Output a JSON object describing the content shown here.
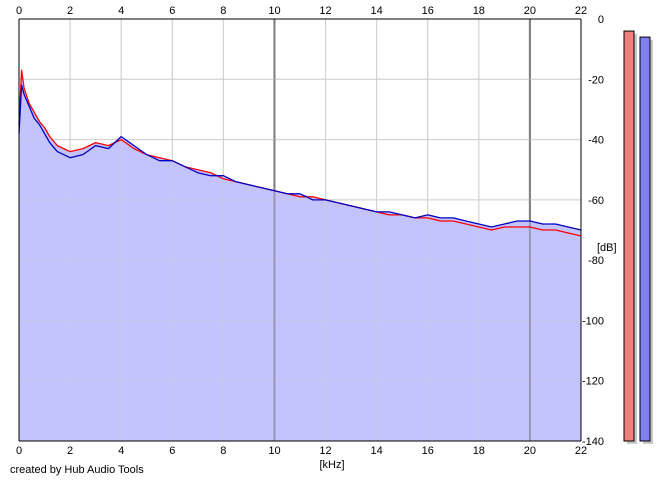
{
  "app": {
    "credit": "created by Hub Audio Tools"
  },
  "colors": {
    "background": "#ffffff",
    "area_fill": "#c0c0ff",
    "grid_minor": "#d0d0d0",
    "grid_major": "#7f7f7f",
    "series_left": "#ff0000",
    "series_right": "#0000c0",
    "meter_left": "#f08080",
    "meter_right": "#8080f0",
    "meter_shadow": "#c8c8c8"
  },
  "chart_data": {
    "type": "line",
    "title": "",
    "xlabel": "[kHz]",
    "ylabel": "[dB]",
    "xlim": [
      0,
      22
    ],
    "ylim": [
      -140,
      0
    ],
    "x_ticks": [
      "0",
      "2",
      "4",
      "6",
      "8",
      "10",
      "12",
      "14",
      "16",
      "18",
      "20",
      "22"
    ],
    "y_ticks": [
      "0",
      "-20",
      "-40",
      "-60",
      "-80",
      "-100",
      "-120",
      "-140"
    ],
    "x_major_every_khz": 10,
    "grid": true,
    "legend": "none",
    "series": [
      {
        "channel": "left",
        "color": "#ff0000",
        "x": [
          0,
          0.1,
          0.2,
          0.4,
          0.6,
          0.8,
          1,
          1.2,
          1.5,
          2,
          2.5,
          3,
          3.5,
          4,
          4.5,
          5,
          5.5,
          6,
          6.5,
          7,
          7.5,
          8,
          8.5,
          9,
          9.5,
          10,
          10.5,
          11,
          11.5,
          12,
          12.5,
          13,
          13.5,
          14,
          14.5,
          15,
          15.5,
          16,
          16.5,
          17,
          17.5,
          18,
          18.5,
          19,
          19.5,
          20,
          20.5,
          21,
          21.5,
          22
        ],
        "values": [
          -35,
          -17,
          -23,
          -28,
          -31,
          -34,
          -36,
          -39,
          -42,
          -44,
          -43,
          -41,
          -42,
          -40,
          -43,
          -45,
          -46,
          -47,
          -49,
          -50,
          -51,
          -53,
          -54,
          -55,
          -56,
          -57,
          -58,
          -59,
          -59,
          -60,
          -61,
          -62,
          -63,
          -64,
          -65,
          -65,
          -66,
          -66,
          -67,
          -67,
          -68,
          -69,
          -70,
          -69,
          -69,
          -69,
          -70,
          -70,
          -71,
          -72
        ]
      },
      {
        "channel": "right",
        "color": "#0000c0",
        "x": [
          0,
          0.1,
          0.2,
          0.4,
          0.6,
          0.8,
          1,
          1.2,
          1.5,
          2,
          2.5,
          3,
          3.5,
          4,
          4.5,
          5,
          5.5,
          6,
          6.5,
          7,
          7.5,
          8,
          8.5,
          9,
          9.5,
          10,
          10.5,
          11,
          11.5,
          12,
          12.5,
          13,
          13.5,
          14,
          14.5,
          15,
          15.5,
          16,
          16.5,
          17,
          17.5,
          18,
          18.5,
          19,
          19.5,
          20,
          20.5,
          21,
          21.5,
          22
        ],
        "values": [
          -38,
          -22,
          -25,
          -29,
          -33,
          -35,
          -38,
          -41,
          -44,
          -46,
          -45,
          -42,
          -43,
          -39,
          -42,
          -45,
          -47,
          -47,
          -49,
          -51,
          -52,
          -52,
          -54,
          -55,
          -56,
          -57,
          -58,
          -58,
          -60,
          -60,
          -61,
          -62,
          -63,
          -64,
          -64,
          -65,
          -66,
          -65,
          -66,
          -66,
          -67,
          -68,
          -69,
          -68,
          -67,
          -67,
          -68,
          -68,
          -69,
          -70
        ]
      }
    ],
    "meters": {
      "left_db": -4,
      "right_db": -6
    }
  }
}
